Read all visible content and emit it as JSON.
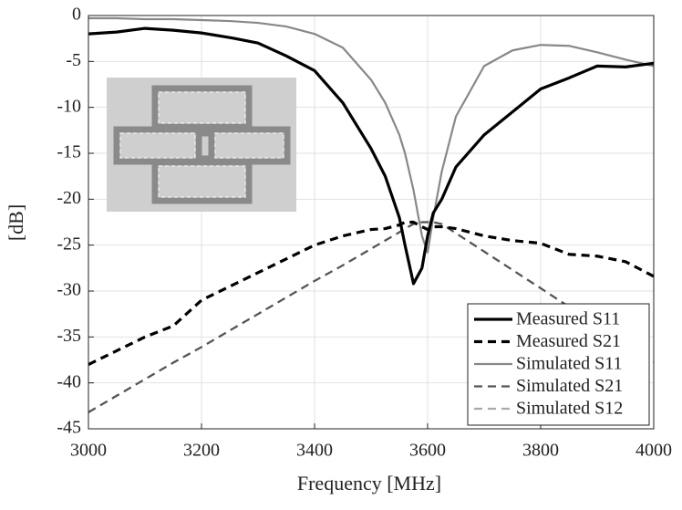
{
  "chart_data": {
    "type": "line",
    "xlabel": "Frequency [MHz]",
    "ylabel": "[dB]",
    "x": [
      3000,
      3050,
      3100,
      3150,
      3200,
      3250,
      3300,
      3350,
      3400,
      3450,
      3500,
      3525,
      3550,
      3560,
      3575,
      3590,
      3600,
      3610,
      3625,
      3650,
      3700,
      3750,
      3800,
      3850,
      3900,
      3950,
      4000
    ],
    "series": [
      {
        "name": "Measured S11",
        "color": "#000000",
        "style": "solid",
        "values": [
          -2,
          -1.8,
          -1.4,
          -1.6,
          -1.9,
          -2.4,
          -3,
          -4.4,
          -6,
          -9.5,
          -14.5,
          -17.5,
          -22,
          -25,
          -29.2,
          -27.5,
          -24,
          -21.5,
          -20,
          -16.5,
          -13,
          -10.5,
          -8,
          -6.8,
          -5.5,
          -5.6,
          -5.2
        ]
      },
      {
        "name": "Measured S21",
        "color": "#000000",
        "style": "dashed",
        "values": [
          -38,
          -36.5,
          -35,
          -33.8,
          -31,
          -29.5,
          -28,
          -26.5,
          -25,
          -24,
          -23.3,
          -23.2,
          -22.8,
          -22.5,
          -22.5,
          -23,
          -23.3,
          -23,
          -23,
          -23.2,
          -24,
          -24.5,
          -24.8,
          -26,
          -26.2,
          -26.8,
          -28.4
        ]
      },
      {
        "name": "Simulated S11",
        "color": "#888888",
        "style": "solid",
        "values": [
          -0.3,
          -0.3,
          -0.4,
          -0.4,
          -0.5,
          -0.6,
          -0.8,
          -1.2,
          -2,
          -3.5,
          -7,
          -9.5,
          -13,
          -15,
          -19,
          -24,
          -25.8,
          -22,
          -17,
          -11,
          -5.5,
          -3.8,
          -3.2,
          -3.3,
          -4,
          -4.8,
          -5.5
        ]
      },
      {
        "name": "Simulated S21",
        "color": "#555555",
        "style": "dashed",
        "values": [
          -43.2,
          -41.4,
          -39.6,
          -37.8,
          -36.1,
          -34.3,
          -32.5,
          -30.7,
          -28.9,
          -27.2,
          -25.4,
          -24.5,
          -23.6,
          -23.2,
          -22.7,
          -22.5,
          -22.5,
          -22.5,
          -22.7,
          -23.7,
          -25.7,
          -27.7,
          -29.7,
          -31.7,
          -33.7,
          -35.7,
          -37.7
        ]
      },
      {
        "name": "Simulated S12",
        "color": "#aaaaaa",
        "style": "dashed",
        "values": [
          -43.2,
          -41.4,
          -39.6,
          -37.8,
          -36.1,
          -34.3,
          -32.5,
          -30.7,
          -28.9,
          -27.2,
          -25.4,
          -24.5,
          -23.6,
          -23.2,
          -22.7,
          -22.5,
          -22.5,
          -22.5,
          -22.7,
          -23.7,
          -25.7,
          -27.7,
          -29.7,
          -31.7,
          -33.7,
          -35.7,
          -37.7
        ]
      }
    ],
    "xlim": [
      3000,
      4000
    ],
    "xticks": [
      3000,
      3200,
      3400,
      3600,
      3800,
      4000
    ],
    "ylim": [
      -45,
      0
    ],
    "yticks": [
      0,
      -5,
      -10,
      -15,
      -20,
      -25,
      -30,
      -35,
      -40,
      -45
    ],
    "grid": true,
    "legend": "lower right"
  }
}
